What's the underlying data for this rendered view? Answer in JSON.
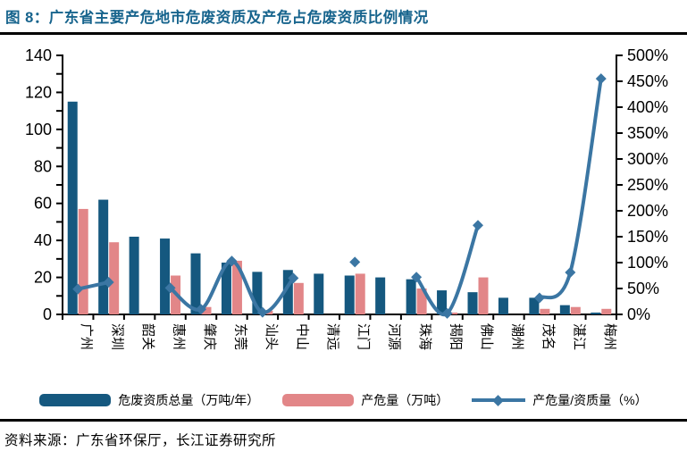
{
  "title": "图 8：广东省主要产危地市危废资质及产危占危废资质比例情况",
  "source": "资料来源：广东省环保厅，长江证券研究所",
  "colors": {
    "title": "#17648D",
    "bar_quota": "#15587F",
    "bar_output": "#E28688",
    "line_ratio": "#3B76A3",
    "axis": "#000000"
  },
  "legend": [
    {
      "label": "危废资质总量（万吨/年）",
      "type": "bar",
      "color_key": "bar_quota"
    },
    {
      "label": "产危量（万吨）",
      "type": "bar",
      "color_key": "bar_output"
    },
    {
      "label": "产危量/资质量（%）",
      "type": "line",
      "color_key": "line_ratio"
    }
  ],
  "chart_data": {
    "type": "bar",
    "subtype": "bar+line combo, dual axis",
    "categories": [
      "广州",
      "深圳",
      "韶关",
      "惠州",
      "肇庆",
      "东莞",
      "汕头",
      "中山",
      "清远",
      "江门",
      "河源",
      "珠海",
      "揭阳",
      "佛山",
      "潮州",
      "茂名",
      "湛江",
      "梅州"
    ],
    "series": [
      {
        "name": "危废资质总量（万吨/年）",
        "type": "bar",
        "axis": "left",
        "values": [
          115,
          62,
          42,
          41,
          33,
          28,
          23,
          24,
          22,
          21,
          20,
          19,
          13,
          12,
          9,
          9,
          5,
          1
        ]
      },
      {
        "name": "产危量（万吨）",
        "type": "bar",
        "axis": "left",
        "values": [
          57,
          39,
          0,
          21,
          4,
          29,
          2,
          17,
          0,
          22,
          0,
          14,
          1,
          20,
          0,
          3,
          4,
          3
        ]
      },
      {
        "name": "产危量/资质量（%）",
        "type": "line",
        "axis": "right",
        "marker": "diamond",
        "values": [
          49,
          62,
          null,
          51,
          10,
          103,
          4,
          70,
          null,
          101,
          null,
          72,
          2,
          172,
          null,
          32,
          81,
          455
        ]
      }
    ],
    "left_axis": {
      "min": 0,
      "max": 140,
      "step": 20,
      "minor_step": 10,
      "labels": [
        "0",
        "20",
        "40",
        "60",
        "80",
        "100",
        "120",
        "140"
      ]
    },
    "right_axis": {
      "min": 0,
      "max": 500,
      "step": 50,
      "labels": [
        "0%",
        "50%",
        "100%",
        "150%",
        "200%",
        "250%",
        "300%",
        "350%",
        "400%",
        "450%",
        "500%"
      ]
    },
    "grid": false,
    "legend_position": "bottom"
  }
}
